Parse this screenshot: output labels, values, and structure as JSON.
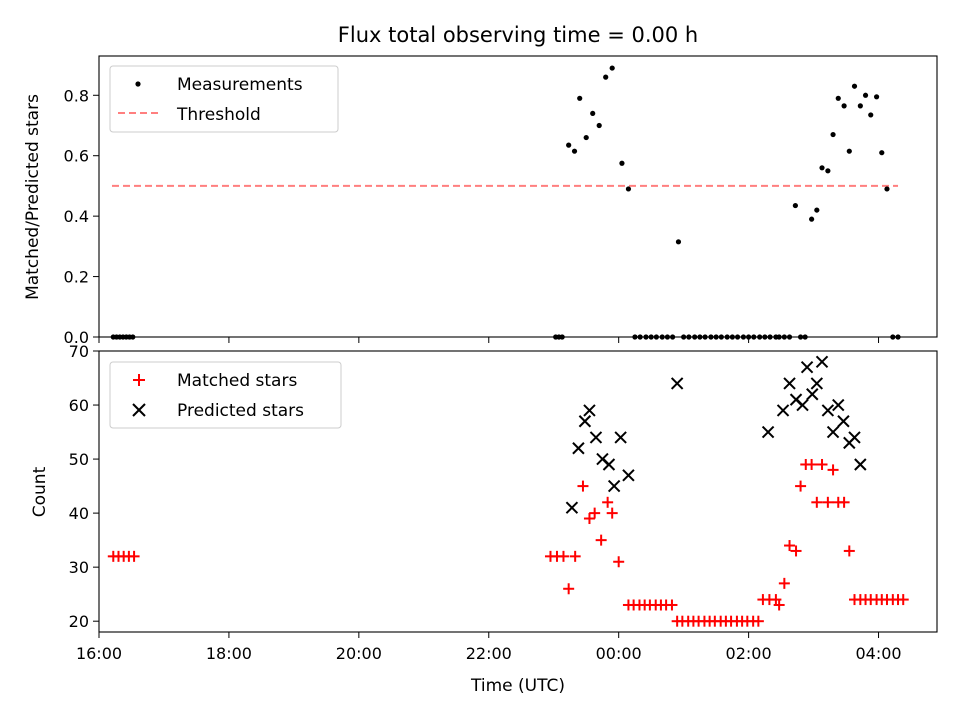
{
  "chart_data": [
    {
      "type": "scatter",
      "title": "Flux total observing time = 0.00 h",
      "ylabel": "Matched/Predicted stars",
      "xlabel": "",
      "xlim": [
        16.0,
        28.9
      ],
      "ylim": [
        0.0,
        0.93
      ],
      "yticks": [
        "0.0",
        "0.2",
        "0.4",
        "0.6",
        "0.8"
      ],
      "legend_position": "top-left",
      "threshold": {
        "name": "Threshold",
        "value": 0.5,
        "x_range": [
          16.2,
          28.3
        ],
        "color": "#ff7f7f"
      },
      "series": [
        {
          "name": "Measurements",
          "color": "#000000",
          "x": [
            16.22,
            16.27,
            16.32,
            16.37,
            16.42,
            16.47,
            16.52,
            23.03,
            23.08,
            23.13,
            23.23,
            23.32,
            23.4,
            23.5,
            23.6,
            23.7,
            23.8,
            23.9,
            24.05,
            24.15,
            24.25,
            24.33,
            24.42,
            24.5,
            24.58,
            24.67,
            24.75,
            24.83,
            24.92,
            25.0,
            25.08,
            25.17,
            25.25,
            25.33,
            25.42,
            25.5,
            25.58,
            25.67,
            25.75,
            25.83,
            25.92,
            26.0,
            26.08,
            26.17,
            26.25,
            26.33,
            26.42,
            26.47,
            26.55,
            26.63,
            26.72,
            26.8,
            26.87,
            26.97,
            27.05,
            27.13,
            27.22,
            27.3,
            27.38,
            27.47,
            27.55,
            27.63,
            27.72,
            27.8,
            27.88,
            27.97,
            28.05,
            28.13,
            28.22,
            28.3
          ],
          "y": [
            0.0,
            0.0,
            0.0,
            0.0,
            0.0,
            0.0,
            0.0,
            0.0,
            0.0,
            0.0,
            0.635,
            0.615,
            0.79,
            0.66,
            0.74,
            0.7,
            0.86,
            0.89,
            0.575,
            0.49,
            0.0,
            0.0,
            0.0,
            0.0,
            0.0,
            0.0,
            0.0,
            0.0,
            0.315,
            0.0,
            0.0,
            0.0,
            0.0,
            0.0,
            0.0,
            0.0,
            0.0,
            0.0,
            0.0,
            0.0,
            0.0,
            0.0,
            0.0,
            0.0,
            0.0,
            0.0,
            0.0,
            0.0,
            0.0,
            0.0,
            0.435,
            0.0,
            0.0,
            0.39,
            0.42,
            0.56,
            0.55,
            0.67,
            0.79,
            0.765,
            0.615,
            0.83,
            0.765,
            0.8,
            0.735,
            0.795,
            0.61,
            0.49,
            0.0,
            0.0
          ]
        }
      ]
    },
    {
      "type": "scatter",
      "title": "",
      "ylabel": "Count",
      "xlabel": "Time (UTC)",
      "xlim": [
        16.0,
        28.9
      ],
      "ylim": [
        18.0,
        70.0
      ],
      "yticks": [
        "20",
        "30",
        "40",
        "50",
        "60",
        "70"
      ],
      "xticks": [
        {
          "value": 16,
          "label": "16:00"
        },
        {
          "value": 18,
          "label": "18:00"
        },
        {
          "value": 20,
          "label": "20:00"
        },
        {
          "value": 22,
          "label": "22:00"
        },
        {
          "value": 24,
          "label": "00:00"
        },
        {
          "value": 26,
          "label": "02:00"
        },
        {
          "value": 28,
          "label": "04:00"
        }
      ],
      "legend_position": "top-left",
      "series": [
        {
          "name": "Matched stars",
          "color": "#ff0000",
          "marker": "plus",
          "x": [
            16.22,
            16.3,
            16.38,
            16.46,
            16.54,
            22.95,
            23.05,
            23.15,
            23.23,
            23.33,
            23.45,
            23.55,
            23.63,
            23.73,
            23.83,
            23.9,
            24.0,
            24.15,
            24.23,
            24.32,
            24.4,
            24.48,
            24.57,
            24.65,
            24.73,
            24.82,
            24.9,
            24.98,
            25.07,
            25.15,
            25.23,
            25.32,
            25.4,
            25.48,
            25.57,
            25.65,
            25.73,
            25.82,
            25.9,
            25.98,
            26.07,
            26.15,
            26.22,
            26.32,
            26.42,
            26.47,
            26.55,
            26.63,
            26.73,
            26.8,
            26.88,
            26.97,
            27.05,
            27.13,
            27.22,
            27.3,
            27.38,
            27.47,
            27.55,
            27.63,
            27.72,
            27.8,
            27.88,
            27.97,
            28.05,
            28.13,
            28.22,
            28.3,
            28.38
          ],
          "y": [
            32,
            32,
            32,
            32,
            32,
            32,
            32,
            32,
            26,
            32,
            45,
            39,
            40,
            35,
            42,
            40,
            31,
            23,
            23,
            23,
            23,
            23,
            23,
            23,
            23,
            23,
            20,
            20,
            20,
            20,
            20,
            20,
            20,
            20,
            20,
            20,
            20,
            20,
            20,
            20,
            20,
            20,
            24,
            24,
            24,
            23,
            27,
            34,
            33,
            45,
            49,
            49,
            42,
            49,
            42,
            48,
            42,
            42,
            33,
            24,
            24,
            24,
            24,
            24,
            24,
            24,
            24,
            24,
            24
          ]
        },
        {
          "name": "Predicted stars",
          "color": "#000000",
          "marker": "x",
          "x": [
            23.28,
            23.38,
            23.48,
            23.55,
            23.65,
            23.75,
            23.85,
            23.93,
            24.03,
            24.15,
            24.9,
            26.3,
            26.53,
            26.63,
            26.73,
            26.83,
            26.9,
            26.98,
            27.05,
            27.13,
            27.22,
            27.3,
            27.38,
            27.46,
            27.55,
            27.63,
            27.72
          ],
          "y": [
            41,
            52,
            57,
            59,
            54,
            50,
            49,
            45,
            54,
            47,
            64,
            55,
            59,
            64,
            61,
            60,
            67,
            62,
            64,
            68,
            59,
            55,
            60,
            57,
            53,
            54,
            49
          ]
        }
      ]
    }
  ]
}
